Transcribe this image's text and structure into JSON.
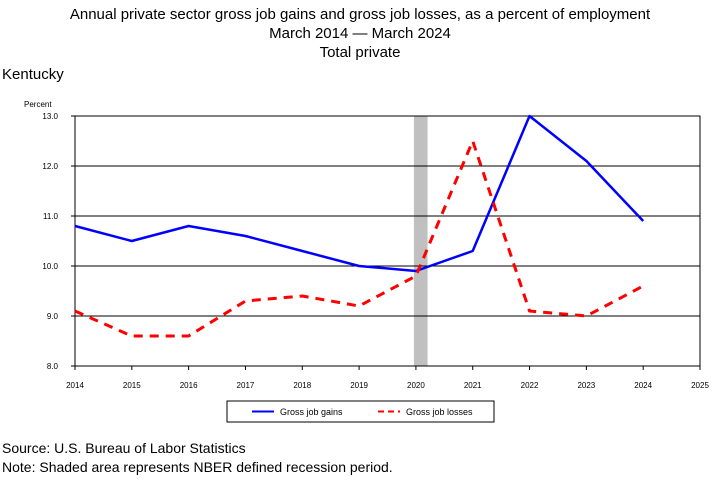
{
  "page": {
    "title_lines": [
      "Annual private sector gross job gains and gross job losses, as a percent of employment",
      "March 2014 — March 2024",
      "Total private"
    ],
    "region": "Kentucky",
    "source": "Source: U.S. Bureau of Labor Statistics",
    "note": "Note: Shaded area represents NBER defined recession period."
  },
  "chart_data": {
    "type": "line",
    "title": "Annual private sector gross job gains and gross job losses, as a percent of employment",
    "subtitle": "March 2014 — March 2024",
    "ylabel": "Percent",
    "ylim": [
      8.0,
      13.0
    ],
    "xlim": [
      2014,
      2025
    ],
    "y_ticks": [
      "8.0",
      "9.0",
      "10.0",
      "11.0",
      "12.0",
      "13.0"
    ],
    "y_gridlines": [
      9.0,
      10.0,
      11.0,
      12.0
    ],
    "x_ticks": [
      "2014",
      "2015",
      "2016",
      "2017",
      "2018",
      "2019",
      "2020",
      "2021",
      "2022",
      "2023",
      "2024",
      "2025"
    ],
    "recession_period": [
      2020.0,
      2020.17
    ],
    "recession_color": "#c0c0c0",
    "grid": true,
    "legend_position": "bottom",
    "series": [
      {
        "name": "Gross job gains",
        "color": "#0000ff",
        "style": "solid",
        "x": [
          2014,
          2015,
          2016,
          2017,
          2018,
          2019,
          2020,
          2021,
          2022,
          2023,
          2024
        ],
        "values": [
          10.8,
          10.5,
          10.8,
          10.6,
          10.3,
          10.0,
          9.9,
          10.3,
          13.0,
          12.1,
          10.9
        ]
      },
      {
        "name": "Gross job losses",
        "color": "#ff0000",
        "style": "dashed",
        "x": [
          2014,
          2015,
          2016,
          2017,
          2018,
          2019,
          2020,
          2021,
          2022,
          2023,
          2024
        ],
        "values": [
          9.1,
          8.6,
          8.6,
          9.3,
          9.4,
          9.2,
          9.8,
          12.5,
          9.1,
          9.0,
          9.6
        ]
      }
    ]
  }
}
